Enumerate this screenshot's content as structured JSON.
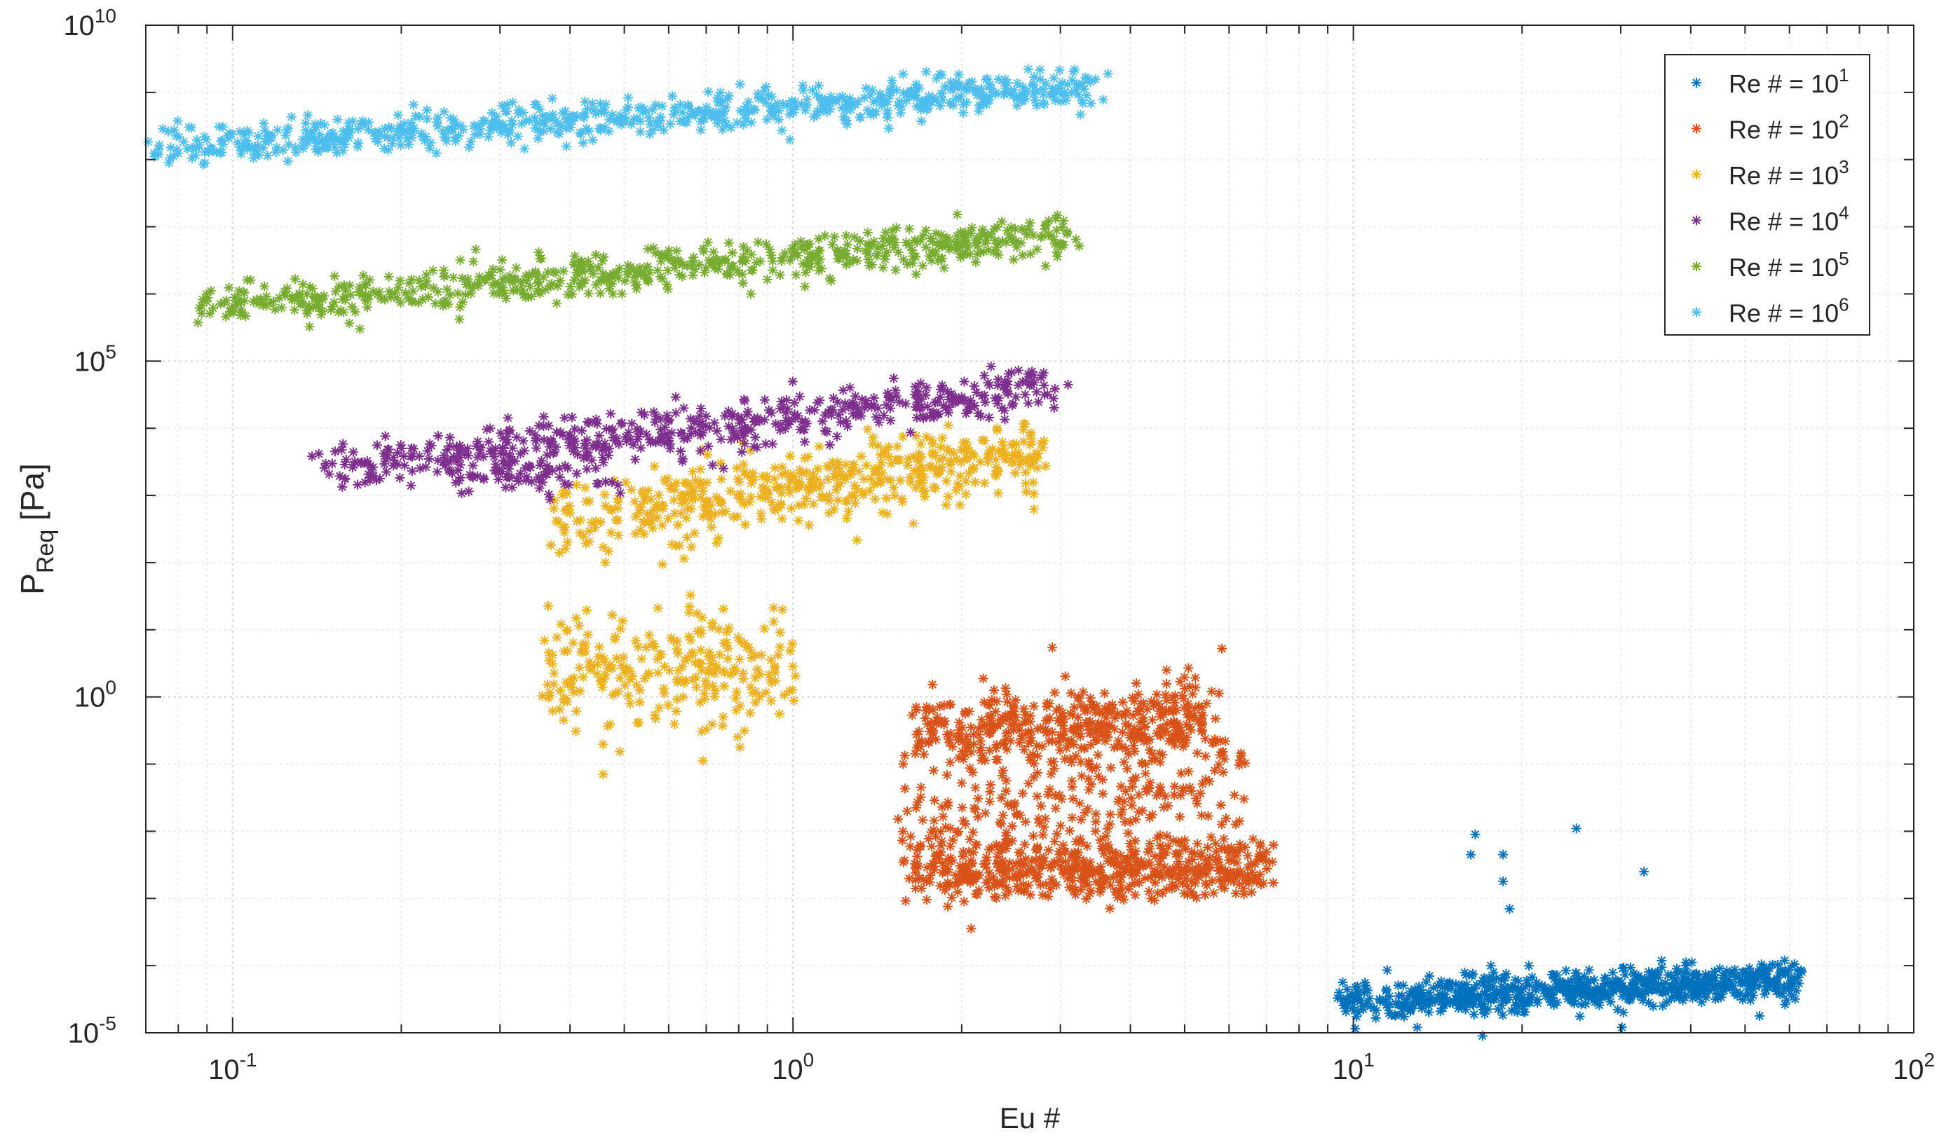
{
  "chart_data": {
    "type": "scatter",
    "title": "",
    "xlabel": "Eu #",
    "ylabel_main": "P",
    "ylabel_sub": "Req",
    "ylabel_unit": " [Pa]",
    "xscale": "log",
    "yscale": "log",
    "xlim": [
      0.07,
      100
    ],
    "ylim": [
      1e-05,
      10000000000
    ],
    "grid": true,
    "minor_grid": true,
    "legend_position": "top-right",
    "x_ticks": [
      {
        "value": 0.1,
        "base": "10",
        "exp": "-1"
      },
      {
        "value": 1,
        "base": "10",
        "exp": "0"
      },
      {
        "value": 10,
        "base": "10",
        "exp": "1"
      },
      {
        "value": 100,
        "base": "10",
        "exp": "2"
      }
    ],
    "y_ticks": [
      {
        "value": 1e-05,
        "base": "10",
        "exp": "-5"
      },
      {
        "value": 1,
        "base": "10",
        "exp": "0"
      },
      {
        "value": 100000,
        "base": "10",
        "exp": "5"
      },
      {
        "value": 10000000000,
        "base": "10",
        "exp": "10"
      }
    ],
    "series": [
      {
        "name": "Re # = 10",
        "name_exp": "1",
        "color": "#0072BD",
        "clusters": [
          {
            "x": [
              9.5,
              62
            ],
            "y": [
              3e-05,
              6e-05
            ],
            "n": 700,
            "spread": 0.14
          }
        ],
        "points": [
          [
            16.5,
            0.009
          ],
          [
            16.2,
            0.0045
          ],
          [
            18.5,
            0.0045
          ],
          [
            18.5,
            0.0018
          ],
          [
            19,
            0.0007
          ],
          [
            25,
            0.011
          ],
          [
            33,
            0.0025
          ],
          [
            13,
            1.2e-05
          ],
          [
            17,
            9e-06
          ]
        ]
      },
      {
        "name": "Re # = 10",
        "name_exp": "2",
        "color": "#D95319",
        "clusters": [
          {
            "x": [
              1.6,
              5.5
            ],
            "y": [
              0.3,
              0.45
            ],
            "n": 420,
            "spread": 0.3
          },
          {
            "x": [
              1.5,
              6.5
            ],
            "y": [
              0.006,
              0.08
            ],
            "n": 260,
            "spread": 0.5
          },
          {
            "x": [
              1.6,
              7
            ],
            "y": [
              0.0025,
              0.003
            ],
            "n": 480,
            "spread": 0.22
          }
        ]
      },
      {
        "name": "Re # = 10",
        "name_exp": "3",
        "color": "#EDB120",
        "clusters": [
          {
            "x": [
              0.37,
              2.8
            ],
            "y": [
              400,
              4000
            ],
            "n": 480,
            "spread": 0.28
          },
          {
            "x": [
              0.35,
              1.0
            ],
            "y": [
              2,
              3
            ],
            "n": 260,
            "spread": 0.45
          }
        ]
      },
      {
        "name": "Re # = 10",
        "name_exp": "4",
        "color": "#7E2F8E",
        "clusters": [
          {
            "x": [
              0.14,
              3.0
            ],
            "y": [
              2500,
              40000
            ],
            "n": 520,
            "spread": 0.18
          },
          {
            "x": [
              0.25,
              0.48
            ],
            "y": [
              2000,
              1800
            ],
            "n": 60,
            "spread": 0.15
          }
        ]
      },
      {
        "name": "Re # = 10",
        "name_exp": "5",
        "color": "#77AC30",
        "clusters": [
          {
            "x": [
              0.085,
              3.2
            ],
            "y": [
              600000,
              8000000
            ],
            "n": 620,
            "spread": 0.16
          }
        ]
      },
      {
        "name": "Re # = 10",
        "name_exp": "6",
        "color": "#4DBEEE",
        "clusters": [
          {
            "x": [
              0.07,
              3.5
            ],
            "y": [
              150000000,
              1200000000
            ],
            "n": 720,
            "spread": 0.14
          }
        ]
      }
    ]
  }
}
